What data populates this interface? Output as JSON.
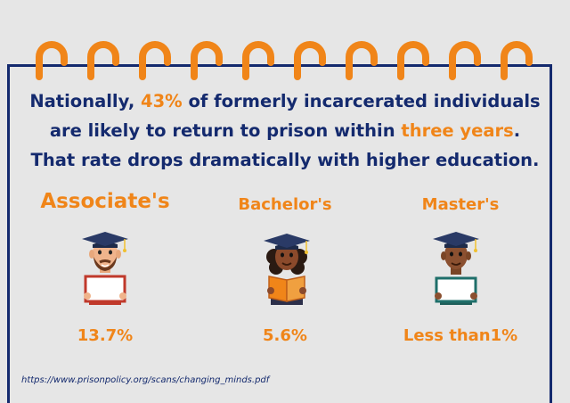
{
  "headline": {
    "line1_pre": "Nationally, ",
    "line1_highlight": "43%",
    "line1_post": " of formerly incarcerated individuals",
    "line2_pre": "are likely to return to prison within ",
    "line2_highlight": "three years",
    "line2_post": ".",
    "line3": "That rate drops dramatically with higher education."
  },
  "degrees": [
    {
      "title": "Associate's",
      "rate": "13.7%",
      "icon": "graduate-man-holding-sign-icon"
    },
    {
      "title": "Bachelor's",
      "rate": "5.6%",
      "icon": "graduate-woman-holding-book-icon"
    },
    {
      "title": "Master's",
      "rate": "Less than1%",
      "icon": "graduate-man-holding-diploma-icon"
    }
  ],
  "source": "https://www.prisonpolicy.org/scans/changing_minds.pdf",
  "colors": {
    "navy": "#142a6e",
    "orange": "#f08519",
    "background": "#e6e6e6"
  }
}
